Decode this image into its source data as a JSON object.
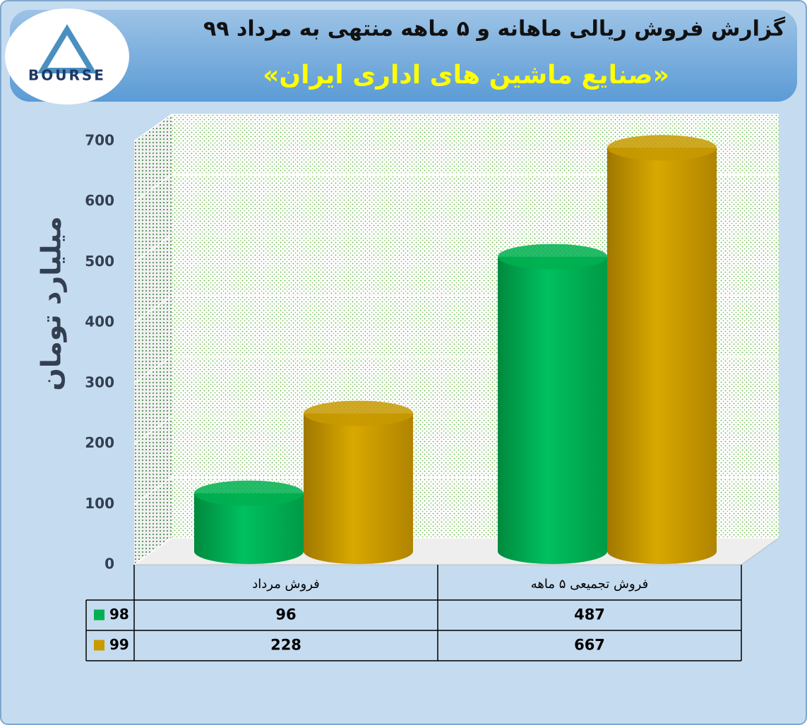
{
  "logo": {
    "text": "BOURSE"
  },
  "chart_data": {
    "type": "bar3d",
    "title": "گزارش فروش ریالی ماهانه و ۵ ماهه منتهی به مرداد ۹۹",
    "subtitle": "«صنایع ماشین های اداری ایران»",
    "y_label": "میلیارد تومان",
    "categories": [
      "فروش مرداد",
      "فروش تجمیعی ۵ ماهه"
    ],
    "series": [
      {
        "name": "98",
        "color": "#00b050",
        "values": [
          96,
          487
        ]
      },
      {
        "name": "99",
        "color": "#c89a00",
        "values": [
          228,
          667
        ]
      }
    ],
    "ylim": [
      0,
      700
    ],
    "yticks": [
      0,
      100,
      200,
      300,
      400,
      500,
      600,
      700
    ],
    "grid": true,
    "data_table": true
  }
}
